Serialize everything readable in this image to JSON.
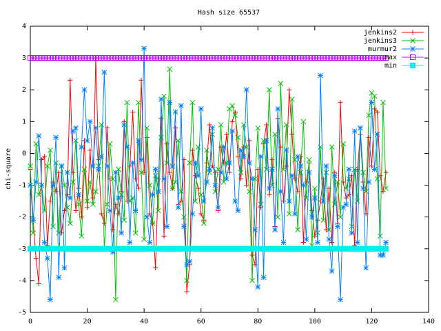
{
  "chart_data": {
    "type": "line",
    "title": "Hash size 65537",
    "y_label": "chi-square",
    "x": [
      0,
      1,
      2,
      3,
      4,
      5,
      6,
      7,
      8,
      9,
      10,
      11,
      12,
      13,
      14,
      15,
      16,
      17,
      18,
      19,
      20,
      21,
      22,
      23,
      24,
      25,
      26,
      27,
      28,
      29,
      30,
      31,
      32,
      33,
      34,
      35,
      36,
      37,
      38,
      39,
      40,
      41,
      42,
      43,
      44,
      45,
      46,
      47,
      48,
      49,
      50,
      51,
      52,
      53,
      54,
      55,
      56,
      57,
      58,
      59,
      60,
      61,
      62,
      63,
      64,
      65,
      66,
      67,
      68,
      69,
      70,
      71,
      72,
      73,
      74,
      75,
      76,
      77,
      78,
      79,
      80,
      81,
      82,
      83,
      84,
      85,
      86,
      87,
      88,
      89,
      90,
      91,
      92,
      93,
      94,
      95,
      96,
      97,
      98,
      99,
      100,
      101,
      102,
      103,
      104,
      105,
      106,
      107,
      108,
      109,
      110,
      111,
      112,
      113,
      114,
      115,
      116,
      117,
      118,
      119,
      120,
      121,
      122,
      123,
      124,
      125
    ],
    "series": [
      {
        "name": "jenkins2",
        "color": "#ff0000",
        "marker": "plus",
        "values": [
          -0.5,
          -2.1,
          -3.3,
          -4.1,
          -0.2,
          -0.1,
          -2.9,
          -1.5,
          -0.9,
          -1.2,
          -0.6,
          -2.5,
          -1.8,
          -1.3,
          2.3,
          -0.6,
          -1.8,
          -1.1,
          -2.0,
          0.4,
          -1.7,
          0.1,
          -1.4,
          3.0,
          -0.2,
          -1.9,
          -2.2,
          0.8,
          -0.8,
          -2.4,
          -1.6,
          -1.9,
          -1.2,
          1.0,
          -1.5,
          -0.4,
          1.3,
          -0.8,
          -1.1,
          2.3,
          -0.6,
          0.5,
          -1.9,
          -2.2,
          -3.6,
          -0.8,
          1.1,
          -2.6,
          0.3,
          -0.6,
          -1.1,
          0.8,
          -1.6,
          -1.5,
          -0.2,
          -4.35,
          -3.5,
          0.1,
          -0.7,
          -1.1,
          -1.9,
          -2.1,
          -0.3,
          0.9,
          -0.4,
          -0.6,
          -1.8,
          0.2,
          -0.3,
          0.6,
          -0.6,
          1.0,
          1.3,
          -0.1,
          -0.8,
          0.2,
          -1.0,
          0.4,
          -3.2,
          -3.5,
          -0.5,
          -1.7,
          0.3,
          0.9,
          -1.3,
          -0.2,
          -2.3,
          1.1,
          0.2,
          -1.5,
          -0.4,
          2.0,
          0.6,
          -0.8,
          -1.2,
          -0.1,
          -2.8,
          -0.9,
          -0.3,
          -1.8,
          -2.6,
          -2.1,
          -1.5,
          -0.8,
          -2.4,
          -1.1,
          -2.8,
          -0.6,
          -2.2,
          1.6,
          -0.9,
          -1.4,
          -1.3,
          -0.7,
          -2.9,
          -0.5,
          0.6,
          -0.9,
          -1.9,
          0.5,
          -0.4,
          1.4,
          1.3,
          -0.7,
          -1.2,
          -0.6
        ]
      },
      {
        "name": "jenkins3",
        "color": "#00c000",
        "marker": "cross",
        "values": [
          -0.4,
          -2.5,
          0.3,
          -1.3,
          -1.0,
          -1.8,
          -0.4,
          0.1,
          -2.3,
          -0.3,
          -2.5,
          -0.4,
          -1.0,
          -1.7,
          -2.2,
          -0.9,
          0.4,
          -1.6,
          -2.6,
          -0.5,
          -1.5,
          -0.9,
          -1.6,
          -1.2,
          -0.4,
          0.9,
          -3.0,
          -1.6,
          0.3,
          -0.8,
          -4.6,
          -0.5,
          -1.3,
          -2.1,
          1.6,
          -1.5,
          -1.4,
          -2.5,
          1.6,
          -0.6,
          -2.7,
          0.8,
          -1.0,
          -2.2,
          -0.7,
          -1.8,
          0.5,
          1.8,
          -0.3,
          2.65,
          -1.1,
          -0.9,
          0.4,
          -1.2,
          -2.0,
          -4.0,
          -0.3,
          1.6,
          -1.5,
          0.2,
          -1.3,
          -2.2,
          0.1,
          -0.6,
          0.6,
          -1.2,
          -0.5,
          0.9,
          -0.9,
          -0.3,
          1.4,
          1.5,
          1.2,
          0.5,
          -0.6,
          0.9,
          0.2,
          -1.2,
          -4.0,
          -0.8,
          0.8,
          -1.6,
          0.4,
          -0.5,
          2.0,
          -1.0,
          0.6,
          -2.0,
          2.2,
          -0.5,
          0.9,
          -1.9,
          1.7,
          -0.2,
          -2.4,
          -0.6,
          1.0,
          -1.4,
          -0.2,
          -2.9,
          -1.1,
          -2.5,
          0.2,
          -2.1,
          -0.6,
          -2.4,
          0.2,
          -1.6,
          -0.9,
          -2.0,
          0.3,
          -1.1,
          -0.8,
          -2.3,
          -0.5,
          -1.5,
          0.8,
          -0.6,
          -1.2,
          1.2,
          1.9,
          1.8,
          -0.8,
          -2.6,
          1.6,
          -1.1
        ]
      },
      {
        "name": "murmur2",
        "color": "#0080ff",
        "marker": "star",
        "values": [
          -1.0,
          -2.1,
          -0.9,
          0.55,
          -1.0,
          -2.8,
          -3.3,
          -4.6,
          -1.0,
          0.5,
          -3.9,
          -0.4,
          -3.6,
          -0.6,
          -1.4,
          0.7,
          0.8,
          -1.3,
          0.2,
          2.0,
          0.4,
          1.0,
          -0.4,
          0.8,
          -0.5,
          -0.1,
          2.55,
          -0.4,
          -1.8,
          -3.1,
          -0.6,
          -1.4,
          -2.5,
          0.9,
          0.2,
          -2.8,
          -0.3,
          -1.8,
          0.4,
          -0.2,
          3.3,
          -2.0,
          -2.8,
          -1.3,
          -0.5,
          -1.2,
          1.7,
          -0.8,
          -2.3,
          1.6,
          -0.4,
          1.3,
          -1.7,
          1.5,
          -2.3,
          -3.5,
          -3.4,
          -1.9,
          -0.3,
          -0.7,
          1.4,
          -1.5,
          -0.9,
          -0.5,
          0.8,
          -1.0,
          -1.7,
          -0.6,
          0.2,
          -0.8,
          -0.3,
          0.7,
          -1.5,
          -1.8,
          0.1,
          -0.1,
          2.0,
          -0.3,
          -0.8,
          -2.4,
          -4.2,
          -0.1,
          -3.9,
          0.4,
          -1.1,
          -0.5,
          -2.4,
          1.4,
          -1.2,
          -2.8,
          0.1,
          -1.5,
          -0.7,
          -1.9,
          -0.1,
          -0.4,
          -1.0,
          -2.7,
          -0.6,
          -2.0,
          -1.4,
          -2.8,
          2.45,
          -1.5,
          -0.4,
          -2.7,
          -3.7,
          -0.7,
          -2.3,
          -4.6,
          -1.7,
          -1.6,
          -0.5,
          -2.5,
          0.7,
          -2.8,
          0.8,
          -1.1,
          -3.6,
          -0.9,
          1.6,
          -0.5,
          0.6,
          -3.2,
          -3.2,
          -2.8
        ]
      },
      {
        "name": "max",
        "color": "#c000ff",
        "marker": "square",
        "values": [
          3,
          3,
          3,
          3,
          3,
          3,
          3,
          3,
          3,
          3,
          3,
          3,
          3,
          3,
          3,
          3,
          3,
          3,
          3,
          3,
          3,
          3,
          3,
          3,
          3,
          3,
          3,
          3,
          3,
          3,
          3,
          3,
          3,
          3,
          3,
          3,
          3,
          3,
          3,
          3,
          3,
          3,
          3,
          3,
          3,
          3,
          3,
          3,
          3,
          3,
          3,
          3,
          3,
          3,
          3,
          3,
          3,
          3,
          3,
          3,
          3,
          3,
          3,
          3,
          3,
          3,
          3,
          3,
          3,
          3,
          3,
          3,
          3,
          3,
          3,
          3,
          3,
          3,
          3,
          3,
          3,
          3,
          3,
          3,
          3,
          3,
          3,
          3,
          3,
          3,
          3,
          3,
          3,
          3,
          3,
          3,
          3,
          3,
          3,
          3,
          3,
          3,
          3,
          3,
          3,
          3,
          3,
          3,
          3,
          3,
          3,
          3,
          3,
          3,
          3,
          3,
          3,
          3,
          3,
          3,
          3,
          3,
          3,
          3,
          3,
          3
        ]
      },
      {
        "name": "min",
        "color": "#00eeee",
        "marker": "filled-square",
        "values": [
          -3,
          -3,
          -3,
          -3,
          -3,
          -3,
          -3,
          -3,
          -3,
          -3,
          -3,
          -3,
          -3,
          -3,
          -3,
          -3,
          -3,
          -3,
          -3,
          -3,
          -3,
          -3,
          -3,
          -3,
          -3,
          -3,
          -3,
          -3,
          -3,
          -3,
          -3,
          -3,
          -3,
          -3,
          -3,
          -3,
          -3,
          -3,
          -3,
          -3,
          -3,
          -3,
          -3,
          -3,
          -3,
          -3,
          -3,
          -3,
          -3,
          -3,
          -3,
          -3,
          -3,
          -3,
          -3,
          -3,
          -3,
          -3,
          -3,
          -3,
          -3,
          -3,
          -3,
          -3,
          -3,
          -3,
          -3,
          -3,
          -3,
          -3,
          -3,
          -3,
          -3,
          -3,
          -3,
          -3,
          -3,
          -3,
          -3,
          -3,
          -3,
          -3,
          -3,
          -3,
          -3,
          -3,
          -3,
          -3,
          -3,
          -3,
          -3,
          -3,
          -3,
          -3,
          -3,
          -3,
          -3,
          -3,
          -3,
          -3,
          -3,
          -3,
          -3,
          -3,
          -3,
          -3,
          -3,
          -3,
          -3,
          -3,
          -3,
          -3,
          -3,
          -3,
          -3,
          -3,
          -3,
          -3,
          -3,
          -3,
          -3,
          -3,
          -3,
          -3,
          -3,
          -3
        ]
      }
    ],
    "xlim": [
      0,
      140
    ],
    "xticks": [
      0,
      20,
      40,
      60,
      80,
      100,
      120,
      140
    ],
    "ylim": [
      -5,
      4
    ],
    "yticks": [
      -5,
      -4,
      -3,
      -2,
      -1,
      0,
      1,
      2,
      3,
      4
    ],
    "grid": false,
    "legend": "top-right"
  }
}
